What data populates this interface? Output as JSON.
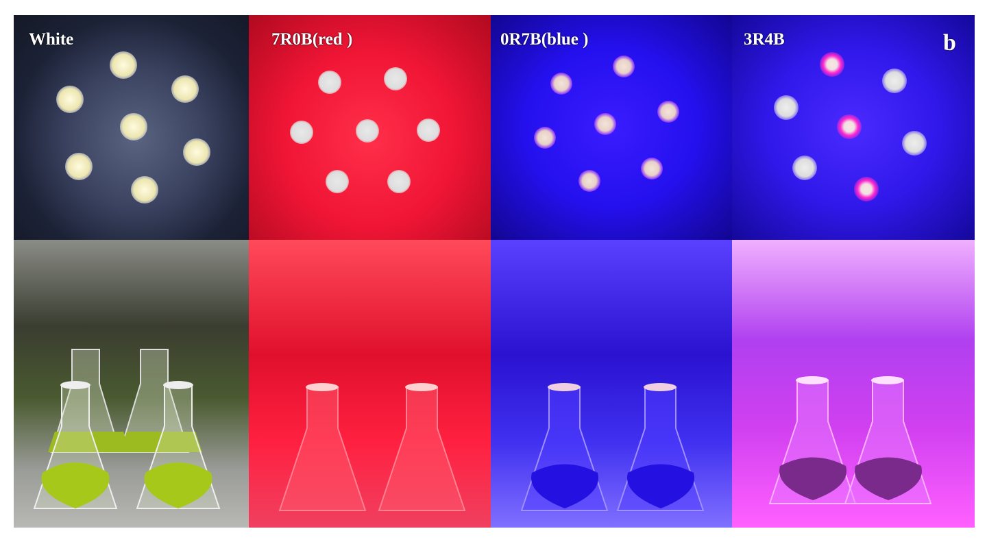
{
  "panels": [
    {
      "label": "White",
      "color": "#1a1f33"
    },
    {
      "label": "7R0B(red )",
      "color": "#e8102e"
    },
    {
      "label": "0R7B(blue )",
      "color": "#1a0be0"
    },
    {
      "label": "3R4B",
      "color": "#2a10d8"
    }
  ],
  "panel_letter": "b"
}
